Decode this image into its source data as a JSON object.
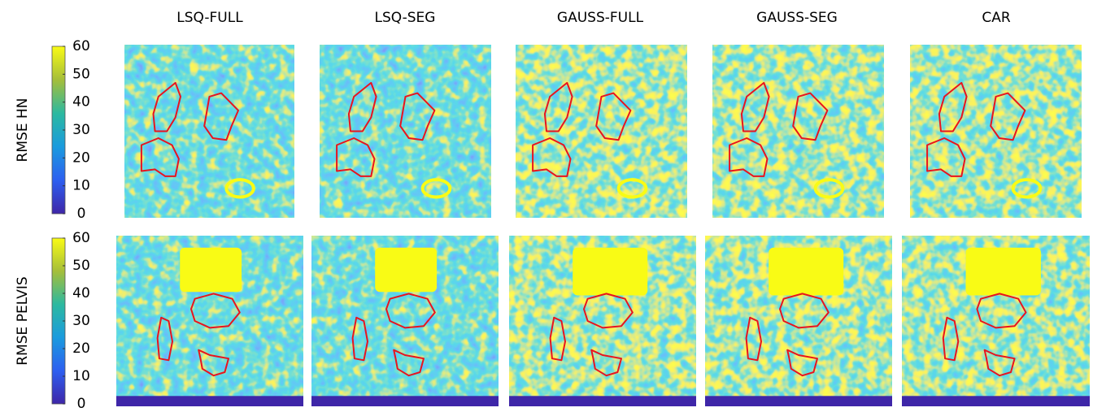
{
  "columns": [
    "LSQ-FULL",
    "LSQ-SEG",
    "GAUSS-FULL",
    "GAUSS-SEG",
    "CAR"
  ],
  "rows": [
    {
      "label": "RMSE HN",
      "colorbar": {
        "lim": [
          0,
          60
        ],
        "ticks": [
          0,
          10,
          20,
          30,
          40,
          50,
          60
        ]
      }
    },
    {
      "label": "RMSE PELVIS",
      "colorbar": {
        "lim": [
          0,
          60
        ],
        "ticks": [
          0,
          10,
          20,
          30,
          40,
          50,
          60
        ]
      }
    }
  ]
}
